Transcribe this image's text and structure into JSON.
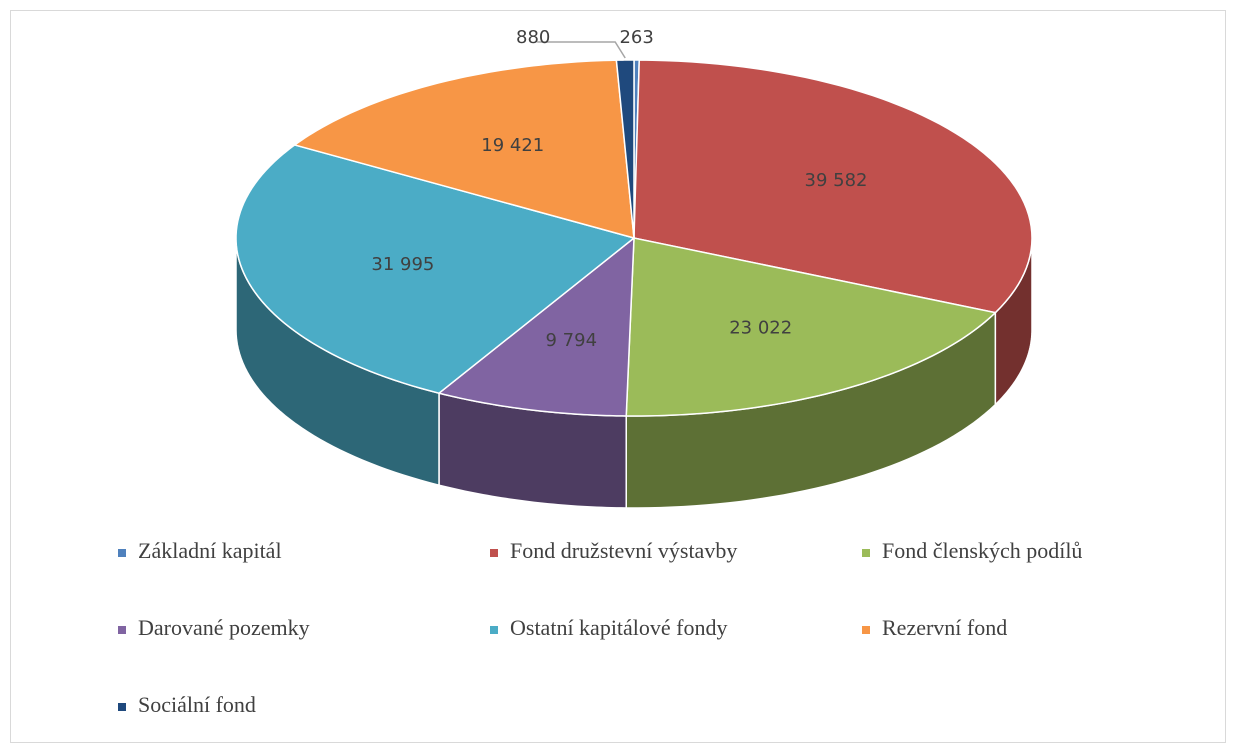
{
  "chart_data": {
    "type": "pie",
    "categories": [
      "Základní kapitál",
      "Fond družstevní výstavby",
      "Fond členských podílů",
      "Darované pozemky",
      "Ostatní kapitálové fondy",
      "Rezervní fond",
      "Sociální fond"
    ],
    "values": [
      263,
      39582,
      23022,
      9794,
      31995,
      19421,
      880
    ],
    "value_labels": [
      "263",
      "39 582",
      "23 022",
      "9 794",
      "31 995",
      "19 421",
      "880"
    ],
    "colors": [
      "#4f81bd",
      "#c0504d",
      "#9bbb59",
      "#8064a2",
      "#4bacc6",
      "#f79646",
      "#1f497d"
    ],
    "legend": "bottom"
  }
}
